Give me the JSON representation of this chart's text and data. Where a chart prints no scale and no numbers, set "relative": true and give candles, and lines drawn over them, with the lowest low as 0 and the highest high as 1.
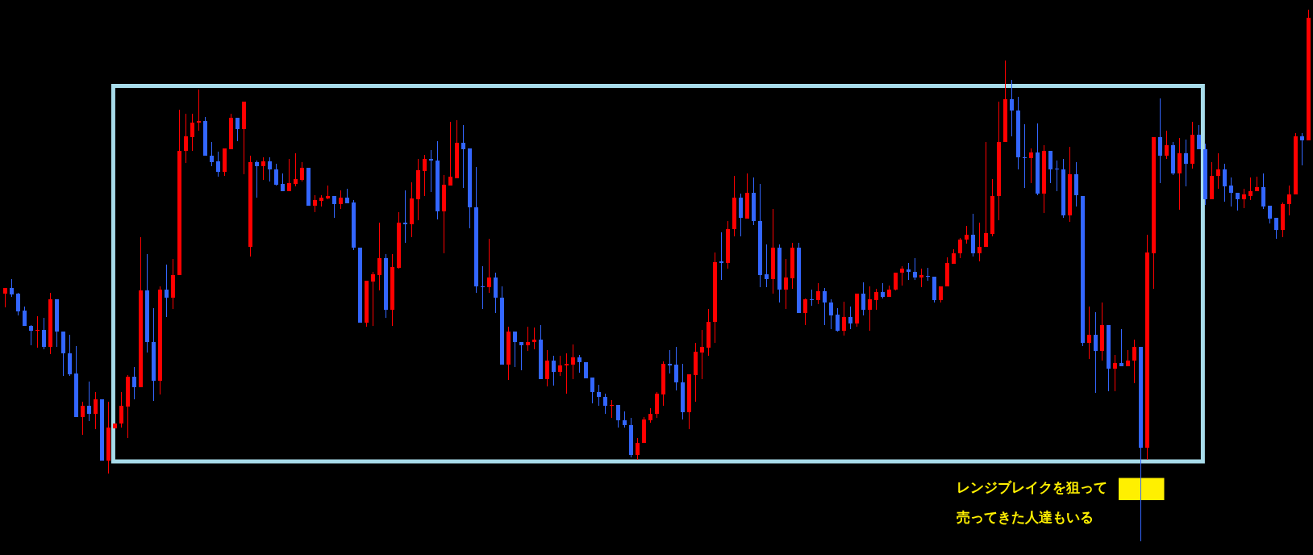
{
  "chart_data": {
    "type": "candlestick",
    "relative": true,
    "categories": [
      null,
      null,
      null,
      null,
      null,
      null,
      null,
      null,
      null,
      null,
      null,
      null,
      null,
      null,
      null,
      null,
      null,
      null,
      null,
      null,
      null,
      null,
      null,
      null,
      null,
      null,
      null,
      null,
      null,
      null,
      null,
      null,
      null,
      null,
      null,
      null,
      null,
      null,
      null,
      null,
      null,
      null,
      null,
      null,
      null,
      null,
      null,
      null,
      null,
      null,
      null,
      null,
      null,
      null,
      null,
      null,
      null,
      null,
      null,
      null,
      null,
      null,
      null,
      null,
      null,
      null,
      null,
      null,
      null,
      null,
      null,
      null,
      null,
      null,
      null,
      null,
      null,
      null,
      null,
      null,
      null,
      null,
      null,
      null,
      null,
      null,
      null,
      null,
      null,
      null,
      null,
      null,
      null,
      null,
      null,
      null,
      null,
      null,
      null,
      null,
      null,
      null,
      null,
      null,
      null,
      null,
      null,
      null,
      null,
      null,
      null,
      null,
      null,
      null,
      null,
      null,
      null,
      null,
      null,
      null,
      null,
      null,
      null,
      null,
      null,
      null,
      null,
      null,
      null,
      null,
      null,
      null,
      null,
      null,
      null,
      null,
      null,
      null,
      null,
      null,
      null,
      null,
      null,
      null,
      null,
      null,
      null,
      null,
      null,
      null,
      null,
      null,
      null,
      null,
      null,
      null,
      null,
      null,
      null,
      null,
      null,
      null,
      null,
      null,
      null,
      null,
      null,
      null,
      null,
      null,
      null,
      null,
      null,
      null,
      null,
      null,
      null,
      null,
      null,
      null,
      null,
      null,
      null,
      null,
      null,
      null,
      null,
      null,
      null,
      null,
      null,
      null,
      null,
      null,
      null,
      null,
      null,
      null,
      null,
      null,
      null,
      null,
      null
    ],
    "ohlc": [
      [
        0.466,
        0.476,
        0.44,
        0.476
      ],
      [
        0.476,
        0.493,
        0.46,
        0.464
      ],
      [
        0.466,
        0.467,
        0.426,
        0.432
      ],
      [
        0.434,
        0.441,
        0.405,
        0.405
      ],
      [
        0.405,
        0.406,
        0.37,
        0.396
      ],
      [
        0.396,
        0.422,
        0.364,
        0.397
      ],
      [
        0.397,
        0.42,
        0.362,
        0.365
      ],
      [
        0.365,
        0.467,
        0.353,
        0.455
      ],
      [
        0.455,
        0.455,
        0.367,
        0.394
      ],
      [
        0.394,
        0.394,
        0.312,
        0.353
      ],
      [
        0.353,
        0.387,
        0.311,
        0.314
      ],
      [
        0.315,
        0.367,
        0.233,
        0.233
      ],
      [
        0.233,
        0.262,
        0.201,
        0.255
      ],
      [
        0.255,
        0.299,
        0.226,
        0.24
      ],
      [
        0.24,
        0.279,
        0.212,
        0.267
      ],
      [
        0.267,
        0.267,
        0.151,
        0.151
      ],
      [
        0.151,
        0.262,
        0.127,
        0.214
      ],
      [
        0.212,
        0.221,
        0.212,
        0.221
      ],
      [
        0.221,
        0.279,
        0.215,
        0.254
      ],
      [
        0.253,
        0.311,
        0.195,
        0.309
      ],
      [
        0.309,
        0.326,
        0.268,
        0.29
      ],
      [
        0.29,
        0.572,
        0.29,
        0.472
      ],
      [
        0.472,
        0.539,
        0.355,
        0.375
      ],
      [
        0.375,
        0.438,
        0.265,
        0.301
      ],
      [
        0.301,
        0.479,
        0.277,
        0.473
      ],
      [
        0.473,
        0.519,
        0.423,
        0.458
      ],
      [
        0.458,
        0.531,
        0.437,
        0.5
      ],
      [
        0.5,
        0.811,
        0.5,
        0.735
      ],
      [
        0.734,
        0.803,
        0.712,
        0.762
      ],
      [
        0.761,
        0.803,
        0.735,
        0.788
      ],
      [
        0.788,
        0.849,
        0.773,
        0.791
      ],
      [
        0.791,
        0.798,
        0.725,
        0.725
      ],
      [
        0.725,
        0.751,
        0.707,
        0.714
      ],
      [
        0.715,
        0.732,
        0.687,
        0.695
      ],
      [
        0.695,
        0.739,
        0.688,
        0.739
      ],
      [
        0.738,
        0.804,
        0.738,
        0.797
      ],
      [
        0.797,
        0.797,
        0.753,
        0.776
      ],
      [
        0.776,
        0.827,
        0.691,
        0.827
      ],
      [
        0.554,
        0.724,
        0.536,
        0.713
      ],
      [
        0.713,
        0.715,
        0.648,
        0.706
      ],
      [
        0.706,
        0.722,
        0.68,
        0.715
      ],
      [
        0.715,
        0.722,
        0.677,
        0.7
      ],
      [
        0.7,
        0.709,
        0.67,
        0.671
      ],
      [
        0.672,
        0.692,
        0.658,
        0.658
      ],
      [
        0.658,
        0.718,
        0.658,
        0.674
      ],
      [
        0.672,
        0.73,
        0.669,
        0.681
      ],
      [
        0.68,
        0.712,
        0.677,
        0.703
      ],
      [
        0.703,
        0.703,
        0.632,
        0.632
      ],
      [
        0.632,
        0.65,
        0.62,
        0.642
      ],
      [
        0.641,
        0.65,
        0.63,
        0.646
      ],
      [
        0.645,
        0.669,
        0.644,
        0.65
      ],
      [
        0.65,
        0.65,
        0.609,
        0.634
      ],
      [
        0.634,
        0.66,
        0.626,
        0.647
      ],
      [
        0.647,
        0.662,
        0.636,
        0.636
      ],
      [
        0.637,
        0.641,
        0.549,
        0.552
      ],
      [
        0.553,
        0.553,
        0.411,
        0.411
      ],
      [
        0.411,
        0.49,
        0.404,
        0.49
      ],
      [
        0.489,
        0.506,
        0.406,
        0.502
      ],
      [
        0.501,
        0.599,
        0.472,
        0.533
      ],
      [
        0.533,
        0.54,
        0.421,
        0.435
      ],
      [
        0.435,
        0.539,
        0.406,
        0.516
      ],
      [
        0.514,
        0.618,
        0.513,
        0.599
      ],
      [
        0.599,
        0.66,
        0.562,
        0.597
      ],
      [
        0.597,
        0.674,
        0.573,
        0.645
      ],
      [
        0.643,
        0.719,
        0.605,
        0.698
      ],
      [
        0.697,
        0.727,
        0.65,
        0.719
      ],
      [
        0.719,
        0.735,
        0.658,
        0.717
      ],
      [
        0.717,
        0.752,
        0.607,
        0.621
      ],
      [
        0.621,
        0.688,
        0.542,
        0.671
      ],
      [
        0.67,
        0.789,
        0.67,
        0.686
      ],
      [
        0.683,
        0.791,
        0.683,
        0.75
      ],
      [
        0.75,
        0.783,
        0.666,
        0.738
      ],
      [
        0.739,
        0.739,
        0.59,
        0.629
      ],
      [
        0.629,
        0.703,
        0.468,
        0.48
      ],
      [
        0.48,
        0.516,
        0.437,
        0.478
      ],
      [
        0.478,
        0.568,
        0.468,
        0.496
      ],
      [
        0.496,
        0.505,
        0.43,
        0.458
      ],
      [
        0.458,
        0.479,
        0.332,
        0.332
      ],
      [
        0.332,
        0.403,
        0.304,
        0.394
      ],
      [
        0.394,
        0.394,
        0.329,
        0.375
      ],
      [
        0.375,
        0.375,
        0.322,
        0.369
      ],
      [
        0.369,
        0.403,
        0.358,
        0.375
      ],
      [
        0.375,
        0.401,
        0.361,
        0.379
      ],
      [
        0.379,
        0.405,
        0.304,
        0.304
      ],
      [
        0.304,
        0.358,
        0.292,
        0.34
      ],
      [
        0.34,
        0.348,
        0.293,
        0.319
      ],
      [
        0.319,
        0.348,
        0.311,
        0.331
      ],
      [
        0.33,
        0.352,
        0.278,
        0.333
      ],
      [
        0.332,
        0.369,
        0.306,
        0.345
      ],
      [
        0.345,
        0.349,
        0.317,
        0.337
      ],
      [
        0.337,
        0.337,
        0.307,
        0.307
      ],
      [
        0.308,
        0.308,
        0.26,
        0.281
      ],
      [
        0.281,
        0.293,
        0.256,
        0.272
      ],
      [
        0.272,
        0.277,
        0.24,
        0.255
      ],
      [
        0.254,
        0.265,
        0.233,
        0.256
      ],
      [
        0.256,
        0.256,
        0.214,
        0.228
      ],
      [
        0.228,
        0.243,
        0.214,
        0.218
      ],
      [
        0.218,
        0.231,
        0.158,
        0.162
      ],
      [
        0.162,
        0.193,
        0.154,
        0.185
      ],
      [
        0.185,
        0.232,
        0.185,
        0.229
      ],
      [
        0.228,
        0.25,
        0.223,
        0.24
      ],
      [
        0.24,
        0.28,
        0.232,
        0.277
      ],
      [
        0.276,
        0.338,
        0.255,
        0.334
      ],
      [
        0.334,
        0.358,
        0.316,
        0.331
      ],
      [
        0.332,
        0.365,
        0.284,
        0.298
      ],
      [
        0.298,
        0.333,
        0.23,
        0.243
      ],
      [
        0.243,
        0.314,
        0.212,
        0.314
      ],
      [
        0.312,
        0.373,
        0.263,
        0.356
      ],
      [
        0.355,
        0.397,
        0.305,
        0.365
      ],
      [
        0.364,
        0.436,
        0.349,
        0.413
      ],
      [
        0.413,
        0.543,
        0.374,
        0.525
      ],
      [
        0.526,
        0.581,
        0.492,
        0.523
      ],
      [
        0.523,
        0.602,
        0.514,
        0.588
      ],
      [
        0.587,
        0.687,
        0.574,
        0.647
      ],
      [
        0.647,
        0.654,
        0.574,
        0.608
      ],
      [
        0.607,
        0.692,
        0.607,
        0.656
      ],
      [
        0.656,
        0.684,
        0.595,
        0.603
      ],
      [
        0.603,
        0.672,
        0.479,
        0.501
      ],
      [
        0.502,
        0.557,
        0.478,
        0.493
      ],
      [
        0.493,
        0.624,
        0.467,
        0.552
      ],
      [
        0.552,
        0.557,
        0.45,
        0.474
      ],
      [
        0.473,
        0.531,
        0.438,
        0.496
      ],
      [
        0.494,
        0.561,
        0.475,
        0.553
      ],
      [
        0.553,
        0.56,
        0.43,
        0.43
      ],
      [
        0.429,
        0.456,
        0.408,
        0.455
      ],
      [
        0.455,
        0.473,
        0.443,
        0.454
      ],
      [
        0.454,
        0.485,
        0.446,
        0.471
      ],
      [
        0.471,
        0.475,
        0.408,
        0.449
      ],
      [
        0.449,
        0.455,
        0.399,
        0.425
      ],
      [
        0.426,
        0.438,
        0.395,
        0.396
      ],
      [
        0.396,
        0.45,
        0.388,
        0.422
      ],
      [
        0.422,
        0.44,
        0.399,
        0.41
      ],
      [
        0.409,
        0.465,
        0.404,
        0.465
      ],
      [
        0.465,
        0.487,
        0.426,
        0.436
      ],
      [
        0.436,
        0.479,
        0.397,
        0.455
      ],
      [
        0.454,
        0.474,
        0.436,
        0.469
      ],
      [
        0.469,
        0.485,
        0.458,
        0.459
      ],
      [
        0.459,
        0.48,
        0.459,
        0.474
      ],
      [
        0.474,
        0.506,
        0.472,
        0.506
      ],
      [
        0.506,
        0.516,
        0.481,
        0.513
      ],
      [
        0.512,
        0.523,
        0.492,
        0.507
      ],
      [
        0.507,
        0.532,
        0.492,
        0.496
      ],
      [
        0.496,
        0.512,
        0.479,
        0.5
      ],
      [
        0.499,
        0.513,
        0.491,
        0.498
      ],
      [
        0.498,
        0.498,
        0.45,
        0.453
      ],
      [
        0.453,
        0.48,
        0.45,
        0.48
      ],
      [
        0.48,
        0.533,
        0.48,
        0.523
      ],
      [
        0.522,
        0.548,
        0.522,
        0.541
      ],
      [
        0.541,
        0.57,
        0.533,
        0.568
      ],
      [
        0.568,
        0.592,
        0.561,
        0.577
      ],
      [
        0.577,
        0.615,
        0.536,
        0.542
      ],
      [
        0.542,
        0.598,
        0.528,
        0.554
      ],
      [
        0.554,
        0.75,
        0.554,
        0.579
      ],
      [
        0.578,
        0.68,
        0.575,
        0.65
      ],
      [
        0.65,
        0.826,
        0.605,
        0.751
      ],
      [
        0.751,
        0.904,
        0.751,
        0.832
      ],
      [
        0.832,
        0.868,
        0.762,
        0.811
      ],
      [
        0.811,
        0.836,
        0.7,
        0.723
      ],
      [
        0.723,
        0.784,
        0.666,
        0.721
      ],
      [
        0.721,
        0.739,
        0.675,
        0.732
      ],
      [
        0.732,
        0.786,
        0.652,
        0.654
      ],
      [
        0.654,
        0.745,
        0.618,
        0.734
      ],
      [
        0.734,
        0.734,
        0.674,
        0.7
      ],
      [
        0.701,
        0.715,
        0.66,
        0.699
      ],
      [
        0.699,
        0.718,
        0.61,
        0.613
      ],
      [
        0.613,
        0.742,
        0.601,
        0.69
      ],
      [
        0.69,
        0.712,
        0.631,
        0.651
      ],
      [
        0.65,
        0.65,
        0.368,
        0.373
      ],
      [
        0.373,
        0.44,
        0.343,
        0.388
      ],
      [
        0.388,
        0.43,
        0.28,
        0.358
      ],
      [
        0.358,
        0.448,
        0.341,
        0.406
      ],
      [
        0.406,
        0.406,
        0.283,
        0.324
      ],
      [
        0.324,
        0.35,
        0.283,
        0.335
      ],
      [
        0.335,
        0.398,
        0.329,
        0.329
      ],
      [
        0.329,
        0.358,
        0.329,
        0.34
      ],
      [
        0.34,
        0.378,
        0.298,
        0.365
      ],
      [
        0.365,
        0.365,
        0,
        0.176
      ],
      [
        0.176,
        0.576,
        0.153,
        0.543
      ],
      [
        0.542,
        0.76,
        0.476,
        0.76
      ],
      [
        0.76,
        0.832,
        0.674,
        0.726
      ],
      [
        0.726,
        0.772,
        0.72,
        0.745
      ],
      [
        0.745,
        0.75,
        0.69,
        0.692
      ],
      [
        0.692,
        0.758,
        0.625,
        0.73
      ],
      [
        0.73,
        0.755,
        0.668,
        0.71
      ],
      [
        0.71,
        0.789,
        0.702,
        0.765
      ],
      [
        0.765,
        0.783,
        0.738,
        0.738
      ],
      [
        0.738,
        0.748,
        0.634,
        0.644
      ],
      [
        0.644,
        0.713,
        0.644,
        0.687
      ],
      [
        0.687,
        0.73,
        0.664,
        0.7
      ],
      [
        0.7,
        0.71,
        0.64,
        0.668
      ],
      [
        0.67,
        0.683,
        0.63,
        0.656
      ],
      [
        0.656,
        0.656,
        0.623,
        0.643
      ],
      [
        0.643,
        0.663,
        0.627,
        0.652
      ],
      [
        0.65,
        0.684,
        0.643,
        0.658
      ],
      [
        0.658,
        0.685,
        0.658,
        0.666
      ],
      [
        0.666,
        0.692,
        0.626,
        0.63
      ],
      [
        0.632,
        0.632,
        0.598,
        0.607
      ],
      [
        0.608,
        0.608,
        0.57,
        0.586
      ],
      [
        0.586,
        0.637,
        0.573,
        0.634
      ],
      [
        0.634,
        0.668,
        0.614,
        0.653
      ],
      [
        0.652,
        0.768,
        0.652,
        0.762
      ],
      [
        0.762,
        0.768,
        0.708,
        0.755
      ],
      [
        0.755,
        1,
        0.755,
        0.985
      ]
    ],
    "colors": [
      "#ff0000",
      "#3366ff",
      "#3366ff",
      "#3366ff",
      "#3366ff",
      "#ff0000",
      "#3366ff",
      "#ff0000",
      "#3366ff",
      "#3366ff",
      "#3366ff",
      "#3366ff",
      "#ff0000",
      "#3366ff",
      "#ff0000",
      "#3366ff",
      "#ff0000",
      "#ff0000",
      "#ff0000",
      "#ff0000",
      "#3366ff",
      "#ff0000",
      "#3366ff",
      "#3366ff",
      "#ff0000",
      "#3366ff",
      "#ff0000",
      "#ff0000",
      "#ff0000",
      "#ff0000",
      "#ff0000",
      "#3366ff",
      "#3366ff",
      "#3366ff",
      "#ff0000",
      "#ff0000",
      "#3366ff",
      "#ff0000",
      "#ff0000",
      "#3366ff",
      "#ff0000",
      "#3366ff",
      "#3366ff",
      "#3366ff",
      "#ff0000",
      "#ff0000",
      "#ff0000",
      "#3366ff",
      "#ff0000",
      "#ff0000",
      "#ff0000",
      "#3366ff",
      "#ff0000",
      "#3366ff",
      "#3366ff",
      "#3366ff",
      "#ff0000",
      "#ff0000",
      "#ff0000",
      "#3366ff",
      "#ff0000",
      "#ff0000",
      "#3366ff",
      "#ff0000",
      "#ff0000",
      "#ff0000",
      "#3366ff",
      "#3366ff",
      "#ff0000",
      "#ff0000",
      "#ff0000",
      "#3366ff",
      "#3366ff",
      "#3366ff",
      "#3366ff",
      "#ff0000",
      "#3366ff",
      "#3366ff",
      "#ff0000",
      "#3366ff",
      "#3366ff",
      "#ff0000",
      "#ff0000",
      "#3366ff",
      "#ff0000",
      "#3366ff",
      "#ff0000",
      "#ff0000",
      "#ff0000",
      "#3366ff",
      "#3366ff",
      "#3366ff",
      "#3366ff",
      "#3366ff",
      "#ff0000",
      "#3366ff",
      "#3366ff",
      "#3366ff",
      "#ff0000",
      "#ff0000",
      "#ff0000",
      "#ff0000",
      "#ff0000",
      "#3366ff",
      "#3366ff",
      "#3366ff",
      "#ff0000",
      "#ff0000",
      "#ff0000",
      "#ff0000",
      "#ff0000",
      "#3366ff",
      "#ff0000",
      "#ff0000",
      "#3366ff",
      "#ff0000",
      "#3366ff",
      "#3366ff",
      "#3366ff",
      "#ff0000",
      "#3366ff",
      "#ff0000",
      "#ff0000",
      "#3366ff",
      "#ff0000",
      "#3366ff",
      "#ff0000",
      "#3366ff",
      "#3366ff",
      "#3366ff",
      "#ff0000",
      "#3366ff",
      "#ff0000",
      "#3366ff",
      "#ff0000",
      "#ff0000",
      "#3366ff",
      "#ff0000",
      "#ff0000",
      "#ff0000",
      "#3366ff",
      "#3366ff",
      "#ff0000",
      "#3366ff",
      "#3366ff",
      "#ff0000",
      "#ff0000",
      "#ff0000",
      "#ff0000",
      "#ff0000",
      "#3366ff",
      "#ff0000",
      "#ff0000",
      "#ff0000",
      "#ff0000",
      "#ff0000",
      "#3366ff",
      "#3366ff",
      "#3366ff",
      "#ff0000",
      "#3366ff",
      "#ff0000",
      "#3366ff",
      "#3366ff",
      "#3366ff",
      "#ff0000",
      "#3366ff",
      "#3366ff",
      "#ff0000",
      "#3366ff",
      "#ff0000",
      "#3366ff",
      "#ff0000",
      "#3366ff",
      "#ff0000",
      "#ff0000",
      "#3366ff",
      "#ff0000",
      "#ff0000",
      "#3366ff",
      "#ff0000",
      "#3366ff",
      "#ff0000",
      "#3366ff",
      "#ff0000",
      "#3366ff",
      "#3366ff",
      "#ff0000",
      "#ff0000",
      "#3366ff",
      "#3366ff",
      "#3366ff",
      "#ff0000",
      "#ff0000",
      "#ff0000",
      "#3366ff",
      "#3366ff",
      "#3366ff",
      "#ff0000",
      "#ff0000",
      "#ff0000",
      "#3366ff",
      "#ff0000"
    ],
    "annotations": [
      "レンジブレイクを狙って",
      "売ってきた人達もいる"
    ]
  }
}
